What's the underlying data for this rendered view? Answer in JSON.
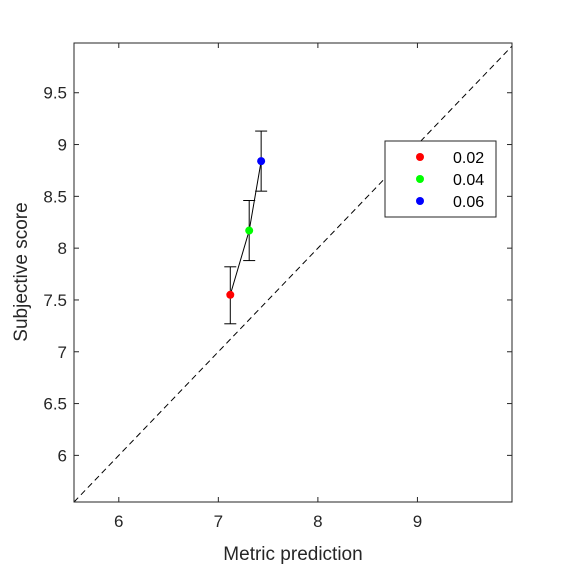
{
  "chart_data": {
    "type": "scatter",
    "xlabel": "Metric prediction",
    "ylabel": "Subjective score",
    "xlim": [
      5.55,
      9.95
    ],
    "ylim": [
      5.55,
      9.98
    ],
    "xticks": [
      6,
      7,
      8,
      9
    ],
    "yticks": [
      6,
      6.5,
      7,
      7.5,
      8,
      8.5,
      9,
      9.5
    ],
    "xtick_labels": [
      "6",
      "7",
      "8",
      "9"
    ],
    "ytick_labels": [
      "6",
      "6.5",
      "7",
      "7.5",
      "8",
      "8.5",
      "9",
      "9.5"
    ],
    "grid": false,
    "diagonal_reference": "dashed y = x line",
    "connecting_line": true,
    "legend_position": "right",
    "series": [
      {
        "name": "0.02",
        "color": "#ff0000",
        "x": 7.12,
        "y": 7.55,
        "err_low": 7.27,
        "err_high": 7.82
      },
      {
        "name": "0.04",
        "color": "#00ff00",
        "x": 7.31,
        "y": 8.17,
        "err_low": 7.88,
        "err_high": 8.46
      },
      {
        "name": "0.06",
        "color": "#0000ff",
        "x": 7.43,
        "y": 8.84,
        "err_low": 8.55,
        "err_high": 9.13
      }
    ]
  }
}
